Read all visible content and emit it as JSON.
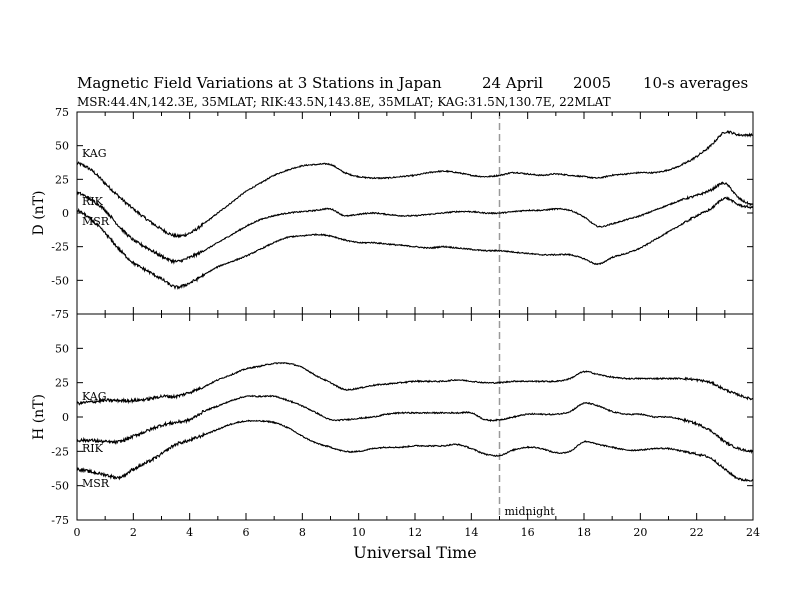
{
  "title": {
    "main": "Magnetic Field Variations at 3 Stations in Japan",
    "date": "24  April",
    "year": "2005",
    "averaging": "10-s averages",
    "stations": "MSR:44.4N,142.3E, 35MLAT;   RIK:43.5N,143.8E, 35MLAT;   KAG:31.5N,130.7E, 22MLAT"
  },
  "annotations": {
    "midnight": "midnight"
  },
  "chart_data": [
    {
      "type": "line",
      "ylabel": "D (nT)",
      "ylim": [
        -75,
        75
      ],
      "yticks": [
        -75,
        -50,
        -25,
        0,
        25,
        50,
        75
      ],
      "yticklabels": [
        "-75",
        "-50",
        "-25",
        "0",
        "25",
        "50",
        "75"
      ],
      "xlim": [
        0,
        24
      ],
      "x": [
        0,
        0.5,
        1,
        1.5,
        2,
        2.5,
        3,
        3.5,
        4,
        4.5,
        5,
        5.5,
        6,
        6.5,
        7,
        7.5,
        8,
        8.5,
        9,
        9.5,
        10,
        10.5,
        11,
        11.5,
        12,
        12.5,
        13,
        13.5,
        14,
        14.5,
        15,
        15.5,
        16,
        16.5,
        17,
        17.5,
        18,
        18.5,
        19,
        19.5,
        20,
        20.5,
        21,
        21.5,
        22,
        22.5,
        23,
        23.5,
        24
      ],
      "series": [
        {
          "name": "KAG",
          "values": [
            37,
            32,
            22,
            12,
            3,
            -5,
            -12,
            -17,
            -15,
            -8,
            0,
            8,
            16,
            22,
            28,
            32,
            35,
            36,
            36,
            30,
            27,
            26,
            26,
            27,
            28,
            30,
            31,
            30,
            28,
            27,
            28,
            30,
            29,
            28,
            29,
            28,
            27,
            26,
            28,
            29,
            30,
            30,
            32,
            36,
            42,
            50,
            60,
            58,
            58
          ]
        },
        {
          "name": "RIK",
          "values": [
            15,
            10,
            2,
            -10,
            -20,
            -26,
            -32,
            -36,
            -33,
            -28,
            -22,
            -16,
            -10,
            -5,
            -2,
            0,
            1,
            2,
            3,
            -2,
            -1,
            0,
            -1,
            -2,
            -2,
            -1,
            0,
            1,
            1,
            0,
            0,
            1,
            2,
            2,
            3,
            2,
            -3,
            -10,
            -8,
            -5,
            -2,
            2,
            6,
            10,
            13,
            17,
            22,
            11,
            6
          ]
        },
        {
          "name": "MSR",
          "values": [
            2,
            -5,
            -15,
            -27,
            -37,
            -43,
            -49,
            -55,
            -52,
            -46,
            -40,
            -36,
            -32,
            -27,
            -22,
            -18,
            -17,
            -16,
            -17,
            -20,
            -22,
            -22,
            -23,
            -24,
            -25,
            -26,
            -25,
            -26,
            -27,
            -28,
            -28,
            -29,
            -30,
            -31,
            -31,
            -31,
            -34,
            -38,
            -33,
            -30,
            -26,
            -20,
            -14,
            -8,
            -2,
            3,
            11,
            6,
            4
          ]
        }
      ]
    },
    {
      "type": "line",
      "ylabel": "H (nT)",
      "xlabel": "Universal Time",
      "ylim": [
        -75,
        75
      ],
      "yticks": [
        -75,
        -50,
        -25,
        0,
        25,
        50
      ],
      "yticklabels": [
        "-75",
        "-50",
        "-25",
        "0",
        "25",
        "50"
      ],
      "xlim": [
        0,
        24
      ],
      "xticks": [
        0,
        2,
        4,
        6,
        8,
        10,
        12,
        14,
        16,
        18,
        20,
        22,
        24
      ],
      "xticklabels": [
        "0",
        "2",
        "4",
        "6",
        "8",
        "10",
        "12",
        "14",
        "16",
        "18",
        "20",
        "22",
        "24"
      ],
      "x": [
        0,
        0.5,
        1,
        1.5,
        2,
        2.5,
        3,
        3.5,
        4,
        4.5,
        5,
        5.5,
        6,
        6.5,
        7,
        7.5,
        8,
        8.5,
        9,
        9.5,
        10,
        10.5,
        11,
        11.5,
        12,
        12.5,
        13,
        13.5,
        14,
        14.5,
        15,
        15.5,
        16,
        16.5,
        17,
        17.5,
        18,
        18.5,
        19,
        19.5,
        20,
        20.5,
        21,
        21.5,
        22,
        22.5,
        23,
        23.5,
        24
      ],
      "series": [
        {
          "name": "KAG",
          "values": [
            10,
            11,
            12,
            12,
            12,
            13,
            15,
            15,
            18,
            22,
            27,
            31,
            35,
            37,
            39,
            39,
            36,
            30,
            25,
            20,
            21,
            23,
            24,
            25,
            26,
            26,
            26,
            27,
            26,
            25,
            25,
            26,
            26,
            26,
            26,
            28,
            33,
            31,
            29,
            28,
            28,
            28,
            28,
            28,
            27,
            25,
            20,
            16,
            13
          ]
        },
        {
          "name": "RIK",
          "values": [
            -17,
            -17,
            -18,
            -18,
            -14,
            -10,
            -6,
            -4,
            -2,
            4,
            8,
            12,
            15,
            15,
            15,
            12,
            8,
            3,
            -2,
            -2,
            -1,
            0,
            2,
            3,
            3,
            3,
            3,
            3,
            3,
            -2,
            -2,
            0,
            2,
            2,
            2,
            4,
            10,
            8,
            4,
            2,
            2,
            0,
            0,
            -2,
            -5,
            -10,
            -18,
            -23,
            -25
          ]
        },
        {
          "name": "MSR",
          "values": [
            -38,
            -40,
            -42,
            -44,
            -38,
            -33,
            -27,
            -20,
            -17,
            -13,
            -9,
            -5,
            -3,
            -3,
            -4,
            -8,
            -14,
            -19,
            -22,
            -25,
            -25,
            -23,
            -22,
            -22,
            -21,
            -21,
            -21,
            -20,
            -23,
            -27,
            -28,
            -24,
            -22,
            -23,
            -26,
            -25,
            -18,
            -20,
            -22,
            -24,
            -24,
            -23,
            -23,
            -25,
            -27,
            -30,
            -38,
            -45,
            -46
          ]
        }
      ]
    }
  ]
}
